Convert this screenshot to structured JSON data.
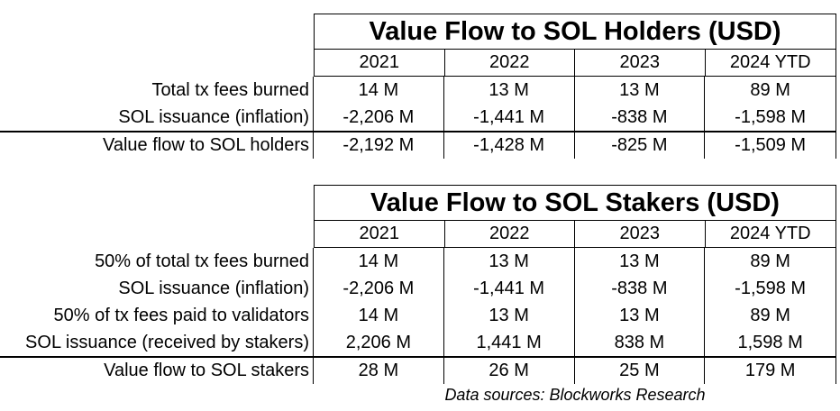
{
  "holders_table": {
    "title": "Value Flow to SOL Holders (USD)",
    "years": [
      "2021",
      "2022",
      "2023",
      "2024 YTD"
    ],
    "rows": [
      {
        "label": "Total tx fees burned",
        "values": [
          "14 M",
          "13 M",
          "13 M",
          "89 M"
        ]
      },
      {
        "label": "SOL issuance (inflation)",
        "values": [
          "-2,206 M",
          "-1,441 M",
          "-838 M",
          "-1,598 M"
        ]
      }
    ],
    "total": {
      "label": "Value flow to SOL holders",
      "values": [
        "-2,192 M",
        "-1,428 M",
        "-825 M",
        "-1,509 M"
      ]
    }
  },
  "stakers_table": {
    "title": "Value Flow to SOL Stakers (USD)",
    "years": [
      "2021",
      "2022",
      "2023",
      "2024 YTD"
    ],
    "rows": [
      {
        "label": "50% of total tx fees burned",
        "values": [
          "14 M",
          "13 M",
          "13 M",
          "89 M"
        ]
      },
      {
        "label": "SOL issuance (inflation)",
        "values": [
          "-2,206 M",
          "-1,441 M",
          "-838 M",
          "-1,598 M"
        ]
      },
      {
        "label": "50% of tx fees paid to validators",
        "values": [
          "14 M",
          "13 M",
          "13 M",
          "89 M"
        ]
      },
      {
        "label": "SOL issuance (received by stakers)",
        "values": [
          "2,206 M",
          "1,441 M",
          "838 M",
          "1,598 M"
        ]
      }
    ],
    "total": {
      "label": "Value flow to SOL stakers",
      "values": [
        "28 M",
        "26 M",
        "25 M",
        "179 M"
      ]
    }
  },
  "source": "Data sources: Blockworks Research"
}
